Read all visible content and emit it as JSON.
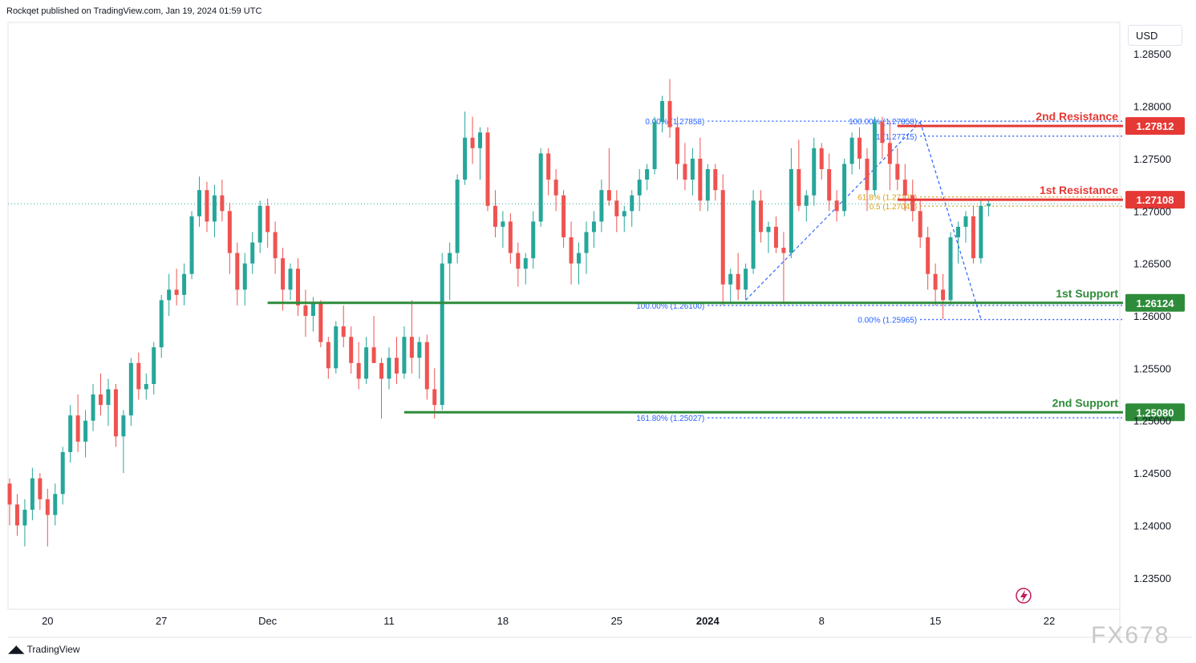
{
  "header": {
    "publisher_text": "Rockqet published on TradingView.com, Jan 19, 2024 01:59 UTC"
  },
  "toolbar": {
    "currency": "USD"
  },
  "footer": {
    "logo_text": "TradingView",
    "watermark": "FX678"
  },
  "colors": {
    "bull": "#26a69a",
    "bear": "#ef5350",
    "support": "#2e8b3a",
    "resistance": "#e53935",
    "fib": "#2962ff",
    "fib_gold": "#d4a017"
  },
  "chart_data": {
    "type": "candlestick",
    "symbol_currency": "USD",
    "y_axis": {
      "ylim": [
        1.232,
        1.288
      ],
      "ticks": [
        1.285,
        1.28,
        1.275,
        1.27,
        1.265,
        1.26,
        1.255,
        1.25,
        1.245,
        1.24,
        1.235
      ],
      "tick_labels": [
        "1.28500",
        "1.28000",
        "1.27500",
        "1.27000",
        "1.26500",
        "1.26000",
        "1.25500",
        "1.25000",
        "1.24500",
        "1.24000",
        "1.23500"
      ]
    },
    "x_axis": {
      "ticks": [
        {
          "label": "20",
          "bar": 5,
          "bold": false
        },
        {
          "label": "27",
          "bar": 20,
          "bold": false
        },
        {
          "label": "Dec",
          "bar": 34,
          "bold": false
        },
        {
          "label": "11",
          "bar": 50,
          "bold": false
        },
        {
          "label": "18",
          "bar": 65,
          "bold": false
        },
        {
          "label": "25",
          "bar": 80,
          "bold": false
        },
        {
          "label": "2024",
          "bar": 92,
          "bold": true
        },
        {
          "label": "8",
          "bar": 107,
          "bold": false
        },
        {
          "label": "15",
          "bar": 122,
          "bold": false
        },
        {
          "label": "22",
          "bar": 137,
          "bold": false
        }
      ]
    },
    "current_price": 1.2707,
    "levels": [
      {
        "name": "2nd Resistance",
        "value": 1.27812,
        "value_label": "1.27812",
        "kind": "resistance",
        "start_bar": 117
      },
      {
        "name": "1st Resistance",
        "value": 1.27108,
        "value_label": "1.27108",
        "kind": "resistance",
        "start_bar": 117
      },
      {
        "name": "1st Support",
        "value": 1.26124,
        "value_label": "1.26124",
        "kind": "support",
        "start_bar": 34
      },
      {
        "name": "2nd Support",
        "value": 1.2508,
        "value_label": "1.25080",
        "kind": "support",
        "start_bar": 52
      }
    ],
    "fib_lines": [
      {
        "label": "0.00% (1.27858)",
        "value": 1.27858,
        "start_bar": 92,
        "color": "fib"
      },
      {
        "label": "100.00% (1.27858)",
        "value": 1.27858,
        "start_bar": 120,
        "color": "fib"
      },
      {
        "label": "1 (1.27715)",
        "value": 1.27715,
        "start_bar": 120,
        "color": "fib"
      },
      {
        "label": "61.8% (1.27135)",
        "value": 1.27135,
        "start_bar": 120,
        "color": "fib_gold"
      },
      {
        "label": "0.5 (1.27047)",
        "value": 1.27047,
        "start_bar": 120,
        "color": "fib_gold"
      },
      {
        "label": "100.00% (1.26100)",
        "value": 1.261,
        "start_bar": 92,
        "color": "fib"
      },
      {
        "label": "0.00% (1.25965)",
        "value": 1.25965,
        "start_bar": 120,
        "color": "fib"
      },
      {
        "label": "161.80% (1.25027)",
        "value": 1.25027,
        "start_bar": 92,
        "color": "fib"
      }
    ],
    "trend_lines": [
      {
        "from_bar": 97,
        "from_value": 1.2615,
        "to_bar": 120,
        "to_value": 1.2785
      },
      {
        "from_bar": 120,
        "from_value": 1.2785,
        "to_bar": 128,
        "to_value": 1.2597
      }
    ],
    "candles": [
      [
        1.244,
        1.2445,
        1.24,
        1.242
      ],
      [
        1.242,
        1.243,
        1.239,
        1.24
      ],
      [
        1.24,
        1.2425,
        1.238,
        1.2415
      ],
      [
        1.2415,
        1.2455,
        1.2405,
        1.2445
      ],
      [
        1.2445,
        1.245,
        1.2415,
        1.2425
      ],
      [
        1.2425,
        1.2435,
        1.238,
        1.241
      ],
      [
        1.241,
        1.244,
        1.24,
        1.243
      ],
      [
        1.243,
        1.2475,
        1.242,
        1.247
      ],
      [
        1.247,
        1.2515,
        1.246,
        1.2505
      ],
      [
        1.2505,
        1.2525,
        1.247,
        1.248
      ],
      [
        1.248,
        1.251,
        1.2465,
        1.25
      ],
      [
        1.25,
        1.2535,
        1.249,
        1.2525
      ],
      [
        1.2525,
        1.2545,
        1.2505,
        1.2515
      ],
      [
        1.2515,
        1.254,
        1.2495,
        1.253
      ],
      [
        1.253,
        1.2535,
        1.2475,
        1.2485
      ],
      [
        1.2485,
        1.251,
        1.245,
        1.2505
      ],
      [
        1.2505,
        1.256,
        1.2495,
        1.2555
      ],
      [
        1.2555,
        1.2565,
        1.252,
        1.253
      ],
      [
        1.253,
        1.2545,
        1.252,
        1.2535
      ],
      [
        1.2535,
        1.2575,
        1.2525,
        1.257
      ],
      [
        1.257,
        1.262,
        1.256,
        1.2615
      ],
      [
        1.2615,
        1.264,
        1.26,
        1.2625
      ],
      [
        1.2625,
        1.2645,
        1.261,
        1.262
      ],
      [
        1.262,
        1.265,
        1.261,
        1.264
      ],
      [
        1.264,
        1.27,
        1.2635,
        1.2695
      ],
      [
        1.2695,
        1.2733,
        1.2685,
        1.272
      ],
      [
        1.272,
        1.2728,
        1.268,
        1.269
      ],
      [
        1.269,
        1.2725,
        1.2675,
        1.2715
      ],
      [
        1.2715,
        1.273,
        1.269,
        1.27
      ],
      [
        1.27,
        1.2708,
        1.264,
        1.266
      ],
      [
        1.266,
        1.267,
        1.261,
        1.2625
      ],
      [
        1.2625,
        1.266,
        1.261,
        1.265
      ],
      [
        1.265,
        1.268,
        1.264,
        1.267
      ],
      [
        1.267,
        1.271,
        1.266,
        1.2705
      ],
      [
        1.2705,
        1.2712,
        1.2665,
        1.268
      ],
      [
        1.268,
        1.269,
        1.264,
        1.2655
      ],
      [
        1.2655,
        1.2665,
        1.2605,
        1.2625
      ],
      [
        1.2625,
        1.265,
        1.2615,
        1.2645
      ],
      [
        1.2645,
        1.2655,
        1.26,
        1.261
      ],
      [
        1.261,
        1.2625,
        1.258,
        1.26
      ],
      [
        1.26,
        1.2618,
        1.2585,
        1.2612
      ],
      [
        1.2612,
        1.2615,
        1.257,
        1.2575
      ],
      [
        1.2575,
        1.258,
        1.254,
        1.255
      ],
      [
        1.255,
        1.2595,
        1.2545,
        1.259
      ],
      [
        1.259,
        1.261,
        1.257,
        1.258
      ],
      [
        1.258,
        1.259,
        1.2545,
        1.2555
      ],
      [
        1.2555,
        1.2575,
        1.253,
        1.254
      ],
      [
        1.254,
        1.258,
        1.2535,
        1.257
      ],
      [
        1.257,
        1.26,
        1.2555,
        1.2555
      ],
      [
        1.2555,
        1.256,
        1.2502,
        1.254
      ],
      [
        1.254,
        1.257,
        1.253,
        1.256
      ],
      [
        1.256,
        1.258,
        1.2535,
        1.2545
      ],
      [
        1.2545,
        1.259,
        1.254,
        1.258
      ],
      [
        1.258,
        1.2615,
        1.2545,
        1.256
      ],
      [
        1.256,
        1.258,
        1.254,
        1.2575
      ],
      [
        1.2575,
        1.2582,
        1.252,
        1.253
      ],
      [
        1.253,
        1.255,
        1.2502,
        1.2515
      ],
      [
        1.2515,
        1.266,
        1.251,
        1.265
      ],
      [
        1.265,
        1.267,
        1.2615,
        1.266
      ],
      [
        1.266,
        1.2735,
        1.265,
        1.273
      ],
      [
        1.273,
        1.2795,
        1.2725,
        1.277
      ],
      [
        1.277,
        1.279,
        1.2745,
        1.276
      ],
      [
        1.276,
        1.278,
        1.273,
        1.2775
      ],
      [
        1.2775,
        1.278,
        1.27,
        1.2705
      ],
      [
        1.2705,
        1.272,
        1.2675,
        1.2685
      ],
      [
        1.2685,
        1.27,
        1.2665,
        1.269
      ],
      [
        1.269,
        1.2698,
        1.265,
        1.266
      ],
      [
        1.266,
        1.267,
        1.2628,
        1.2645
      ],
      [
        1.2645,
        1.266,
        1.263,
        1.2655
      ],
      [
        1.2655,
        1.27,
        1.2645,
        1.269
      ],
      [
        1.269,
        1.276,
        1.2685,
        1.2755
      ],
      [
        1.2755,
        1.276,
        1.2715,
        1.273
      ],
      [
        1.273,
        1.274,
        1.27,
        1.2715
      ],
      [
        1.2715,
        1.272,
        1.2665,
        1.2675
      ],
      [
        1.2675,
        1.269,
        1.263,
        1.265
      ],
      [
        1.265,
        1.267,
        1.263,
        1.266
      ],
      [
        1.266,
        1.269,
        1.264,
        1.268
      ],
      [
        1.268,
        1.27,
        1.2665,
        1.269
      ],
      [
        1.269,
        1.273,
        1.268,
        1.272
      ],
      [
        1.272,
        1.276,
        1.2705,
        1.271
      ],
      [
        1.271,
        1.272,
        1.268,
        1.2695
      ],
      [
        1.2695,
        1.2705,
        1.268,
        1.27
      ],
      [
        1.27,
        1.272,
        1.2685,
        1.2715
      ],
      [
        1.2715,
        1.274,
        1.27,
        1.273
      ],
      [
        1.273,
        1.2745,
        1.272,
        1.274
      ],
      [
        1.274,
        1.279,
        1.2735,
        1.2785
      ],
      [
        1.2785,
        1.281,
        1.2775,
        1.2805
      ],
      [
        1.2805,
        1.2826,
        1.277,
        1.278
      ],
      [
        1.278,
        1.279,
        1.273,
        1.2745
      ],
      [
        1.2745,
        1.2765,
        1.272,
        1.273
      ],
      [
        1.273,
        1.276,
        1.2715,
        1.275
      ],
      [
        1.275,
        1.277,
        1.27,
        1.271
      ],
      [
        1.271,
        1.2745,
        1.27,
        1.274
      ],
      [
        1.274,
        1.2745,
        1.271,
        1.272
      ],
      [
        1.272,
        1.2735,
        1.261,
        1.263
      ],
      [
        1.263,
        1.2645,
        1.2612,
        1.264
      ],
      [
        1.264,
        1.266,
        1.2615,
        1.2625
      ],
      [
        1.2625,
        1.265,
        1.2615,
        1.2645
      ],
      [
        1.2645,
        1.272,
        1.264,
        1.271
      ],
      [
        1.271,
        1.272,
        1.267,
        1.268
      ],
      [
        1.268,
        1.269,
        1.266,
        1.2685
      ],
      [
        1.2685,
        1.2695,
        1.266,
        1.2665
      ],
      [
        1.2665,
        1.268,
        1.2612,
        1.266
      ],
      [
        1.266,
        1.276,
        1.2655,
        1.274
      ],
      [
        1.274,
        1.2768,
        1.27,
        1.2705
      ],
      [
        1.2705,
        1.272,
        1.269,
        1.2715
      ],
      [
        1.2715,
        1.277,
        1.2705,
        1.276
      ],
      [
        1.276,
        1.2765,
        1.273,
        1.274
      ],
      [
        1.274,
        1.2755,
        1.27,
        1.271
      ],
      [
        1.271,
        1.272,
        1.269,
        1.27
      ],
      [
        1.27,
        1.275,
        1.2695,
        1.2745
      ],
      [
        1.2745,
        1.2775,
        1.2735,
        1.277
      ],
      [
        1.277,
        1.278,
        1.274,
        1.275
      ],
      [
        1.275,
        1.276,
        1.27,
        1.272
      ],
      [
        1.272,
        1.279,
        1.2715,
        1.2785
      ],
      [
        1.2785,
        1.279,
        1.275,
        1.2765
      ],
      [
        1.2765,
        1.2786,
        1.272,
        1.2745
      ],
      [
        1.2745,
        1.276,
        1.272,
        1.273
      ],
      [
        1.273,
        1.2745,
        1.27,
        1.2715
      ],
      [
        1.2715,
        1.273,
        1.269,
        1.27
      ],
      [
        1.27,
        1.271,
        1.2665,
        1.2675
      ],
      [
        1.2675,
        1.2685,
        1.2625,
        1.264
      ],
      [
        1.264,
        1.265,
        1.261,
        1.2625
      ],
      [
        1.2625,
        1.264,
        1.2597,
        1.2615
      ],
      [
        1.2615,
        1.268,
        1.261,
        1.2675
      ],
      [
        1.2675,
        1.269,
        1.265,
        1.2685
      ],
      [
        1.2685,
        1.27,
        1.267,
        1.2695
      ],
      [
        1.2695,
        1.2705,
        1.265,
        1.2655
      ],
      [
        1.2655,
        1.271,
        1.265,
        1.2705
      ],
      [
        1.2705,
        1.2712,
        1.2695,
        1.2707
      ]
    ]
  }
}
